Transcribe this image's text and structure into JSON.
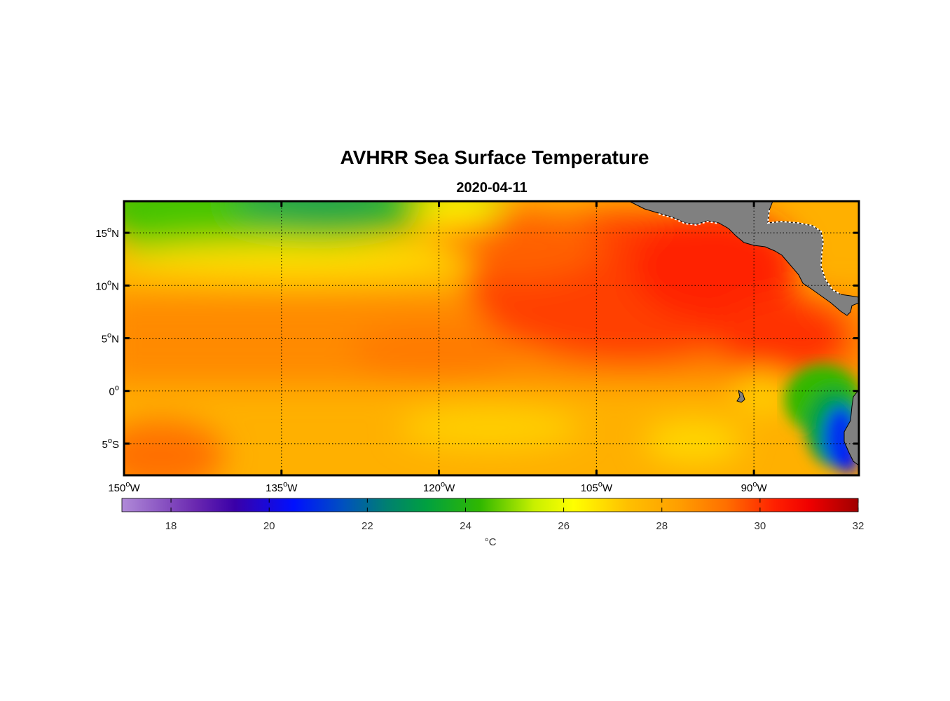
{
  "title": "AVHRR Sea Surface Temperature",
  "subtitle": "2020-04-11",
  "map": {
    "lon_range": [
      -150,
      -80
    ],
    "lat_range": [
      -8,
      18
    ],
    "x_ticks": [
      {
        "value": -150,
        "label": "150",
        "sup": "o",
        "hemi": "W"
      },
      {
        "value": -135,
        "label": "135",
        "sup": "o",
        "hemi": "W"
      },
      {
        "value": -120,
        "label": "120",
        "sup": "o",
        "hemi": "W"
      },
      {
        "value": -105,
        "label": "105",
        "sup": "o",
        "hemi": "W"
      },
      {
        "value": -90,
        "label": "90",
        "sup": "o",
        "hemi": "W"
      }
    ],
    "y_ticks": [
      {
        "value": 15,
        "label": "15",
        "sup": "o",
        "hemi": "N"
      },
      {
        "value": 10,
        "label": "10",
        "sup": "o",
        "hemi": "N"
      },
      {
        "value": 5,
        "label": "5",
        "sup": "o",
        "hemi": "N"
      },
      {
        "value": 0,
        "label": "0",
        "sup": "o",
        "hemi": ""
      },
      {
        "value": -5,
        "label": "5",
        "sup": "o",
        "hemi": "S"
      }
    ],
    "grid": true,
    "land_color": "#808080"
  },
  "colorbar": {
    "range": [
      17,
      32
    ],
    "ticks": [
      18,
      20,
      22,
      24,
      26,
      28,
      30,
      32
    ],
    "label": "°C",
    "stops": [
      {
        "v": 17.0,
        "c": "#b08ad8"
      },
      {
        "v": 18.5,
        "c": "#6a28b0"
      },
      {
        "v": 19.3,
        "c": "#3a00a8"
      },
      {
        "v": 20.5,
        "c": "#0010ff"
      },
      {
        "v": 21.5,
        "c": "#0050c0"
      },
      {
        "v": 22.4,
        "c": "#008070"
      },
      {
        "v": 23.2,
        "c": "#00a040"
      },
      {
        "v": 24.3,
        "c": "#30b800"
      },
      {
        "v": 25.4,
        "c": "#c8f000"
      },
      {
        "v": 26.2,
        "c": "#ffff00"
      },
      {
        "v": 27.3,
        "c": "#ffc000"
      },
      {
        "v": 28.3,
        "c": "#ffa000"
      },
      {
        "v": 29.3,
        "c": "#ff7000"
      },
      {
        "v": 30.3,
        "c": "#ff2000"
      },
      {
        "v": 31.0,
        "c": "#f00000"
      },
      {
        "v": 32.0,
        "c": "#a00000"
      }
    ]
  }
}
